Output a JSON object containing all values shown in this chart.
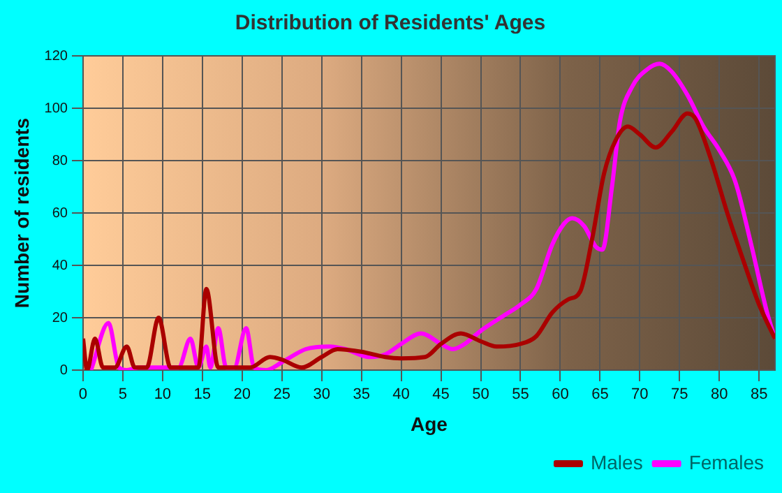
{
  "chart_data": {
    "type": "line",
    "title": "Distribution of Residents' Ages",
    "xlabel": "Age",
    "ylabel": "Number of residents",
    "xlim": [
      0,
      87
    ],
    "xticks": [
      0,
      5,
      10,
      15,
      20,
      25,
      30,
      35,
      40,
      45,
      50,
      55,
      60,
      65,
      70,
      75,
      80,
      85
    ],
    "ylim": [
      0,
      120
    ],
    "yticks": [
      0,
      20,
      40,
      60,
      80,
      100,
      120
    ],
    "grid": true,
    "legend": "bottom right",
    "marker": "none",
    "line_style": "solid",
    "series": [
      {
        "name": "Males",
        "color": "#aa0000",
        "x": [
          0,
          0.5,
          1.5,
          2.5,
          4,
          5.5,
          6.5,
          8,
          9.5,
          11,
          13,
          14.5,
          15.5,
          17,
          19,
          21,
          23.5,
          25,
          27.5,
          30,
          32,
          35,
          38,
          40,
          43,
          45,
          47.5,
          50,
          52,
          55,
          57,
          59,
          61,
          62.5,
          64,
          65.5,
          67,
          68.5,
          70,
          72,
          74,
          76,
          77,
          79,
          81,
          83,
          85,
          87
        ],
        "values": [
          12,
          0,
          12,
          1,
          1,
          9,
          1,
          1,
          20,
          1,
          1,
          1,
          31,
          1,
          1,
          1,
          5,
          4,
          1,
          5,
          8,
          7,
          5,
          4.5,
          5,
          10,
          14,
          11,
          9,
          10,
          13,
          22,
          27,
          30,
          50,
          75,
          88,
          93,
          90,
          85,
          91,
          98,
          96,
          80,
          60,
          42,
          25,
          12
        ]
      },
      {
        "name": "Females",
        "color": "#ff00ff",
        "x": [
          1,
          3.2,
          4.5,
          5.5,
          7,
          10,
          12,
          13.5,
          14.5,
          15.5,
          16,
          17,
          18,
          19,
          20.5,
          21.5,
          23,
          25,
          28,
          31,
          33,
          36,
          38,
          40,
          42.5,
          45,
          46.5,
          48,
          50,
          53,
          55,
          57,
          59,
          60.5,
          61.5,
          63,
          64.5,
          65.3,
          66.5,
          67.5,
          69,
          71,
          72.5,
          74,
          76,
          78,
          80,
          82,
          84,
          86,
          87
        ],
        "values": [
          0,
          18,
          1,
          0,
          1,
          1,
          1,
          12,
          1,
          9,
          1,
          16,
          1,
          1,
          16,
          1,
          0,
          3,
          8,
          9,
          8,
          5,
          6,
          10,
          14,
          10,
          8,
          10,
          15,
          21,
          25,
          31,
          48,
          56,
          58,
          55,
          47,
          46,
          70,
          95,
          108,
          115,
          117,
          114,
          105,
          93,
          84,
          72,
          48,
          22,
          12
        ]
      }
    ]
  }
}
